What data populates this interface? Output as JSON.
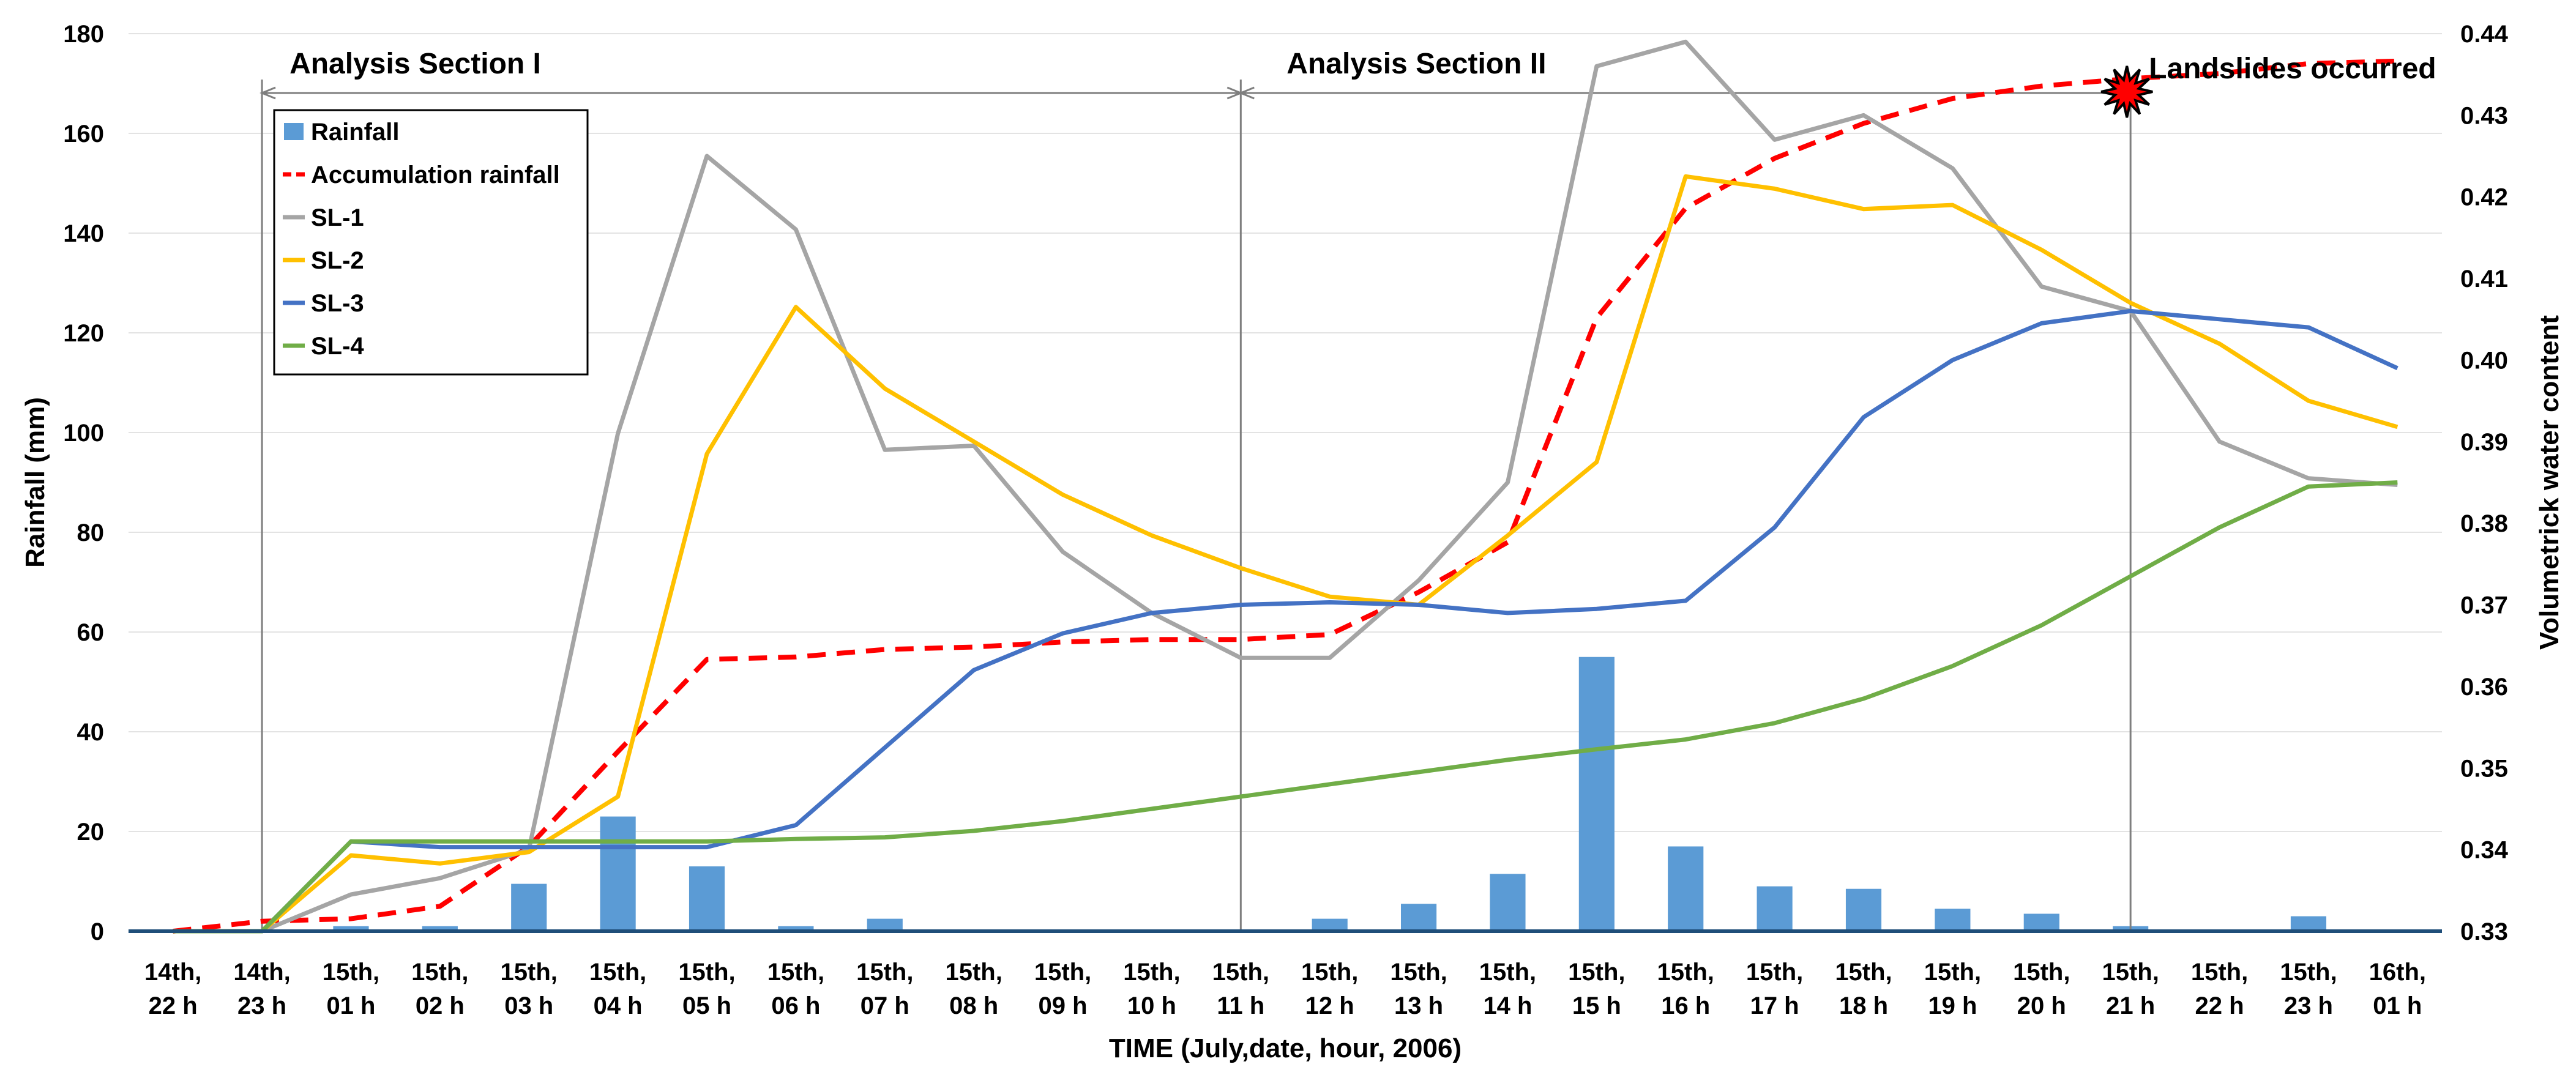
{
  "chart_data": {
    "type": "bar+line",
    "xlabel": "TIME (July,date, hour, 2006)",
    "ylabel_left": "Rainfall (mm)",
    "ylabel_right": "Volumetrick water content",
    "ylim_left": [
      0,
      180
    ],
    "ylim_right": [
      0.33,
      0.44
    ],
    "yticks_left": [
      "0",
      "20",
      "40",
      "60",
      "80",
      "100",
      "120",
      "140",
      "160",
      "180"
    ],
    "yticks_right": [
      "0.33",
      "0.34",
      "0.35",
      "0.36",
      "0.37",
      "0.38",
      "0.39",
      "0.40",
      "0.41",
      "0.42",
      "0.43",
      "0.44"
    ],
    "categories": [
      [
        "14th,",
        "22 h"
      ],
      [
        "14th,",
        "23 h"
      ],
      [
        "15th,",
        "01 h"
      ],
      [
        "15th,",
        "02 h"
      ],
      [
        "15th,",
        "03 h"
      ],
      [
        "15th,",
        "04 h"
      ],
      [
        "15th,",
        "05 h"
      ],
      [
        "15th,",
        "06 h"
      ],
      [
        "15th,",
        "07 h"
      ],
      [
        "15th,",
        "08 h"
      ],
      [
        "15th,",
        "09 h"
      ],
      [
        "15th,",
        "10 h"
      ],
      [
        "15th,",
        "11 h"
      ],
      [
        "15th,",
        "12 h"
      ],
      [
        "15th,",
        "13 h"
      ],
      [
        "15th,",
        "14 h"
      ],
      [
        "15th,",
        "15 h"
      ],
      [
        "15th,",
        "16 h"
      ],
      [
        "15th,",
        "17 h"
      ],
      [
        "15th,",
        "18 h"
      ],
      [
        "15th,",
        "19 h"
      ],
      [
        "15th,",
        "20 h"
      ],
      [
        "15th,",
        "21 h"
      ],
      [
        "15th,",
        "22 h"
      ],
      [
        "15th,",
        "23 h"
      ],
      [
        "16th,",
        "01 h"
      ]
    ],
    "series": [
      {
        "name": "Rainfall",
        "type": "bar",
        "axis": "left",
        "color": "#5B9BD5",
        "values": [
          0,
          0,
          1,
          1,
          9.5,
          23,
          13,
          1,
          2.5,
          0,
          0,
          0,
          0,
          2.5,
          5.5,
          11.5,
          55,
          17,
          9,
          8.5,
          4.5,
          3.5,
          1,
          0,
          3,
          0
        ]
      },
      {
        "name": "Accumulation rainfall",
        "type": "line",
        "dashed": true,
        "axis": "left",
        "color": "#FF0000",
        "values": [
          0,
          2,
          2.5,
          5,
          17,
          36,
          54.5,
          55,
          56.5,
          57,
          58,
          58.5,
          58.5,
          59.5,
          68,
          78,
          123,
          145,
          155,
          162,
          167,
          169.5,
          171,
          172,
          174,
          174.5
        ]
      },
      {
        "name": "SL-1",
        "type": "line",
        "axis": "right",
        "color": "#A5A5A5",
        "values": [
          0.33,
          0.33,
          0.3345,
          0.3365,
          0.34,
          0.391,
          0.425,
          0.416,
          0.389,
          0.3895,
          0.3765,
          0.369,
          0.3635,
          0.3635,
          0.373,
          0.385,
          0.436,
          0.439,
          0.427,
          0.43,
          0.4235,
          0.409,
          0.406,
          0.39,
          0.3855,
          0.3847
        ]
      },
      {
        "name": "SL-2",
        "type": "line",
        "axis": "right",
        "color": "#FFC000",
        "values": [
          0.33,
          0.33,
          0.3393,
          0.3383,
          0.3397,
          0.3465,
          0.3885,
          0.4065,
          0.3965,
          0.39,
          0.3835,
          0.3785,
          0.3745,
          0.371,
          0.37,
          0.3785,
          0.3875,
          0.4225,
          0.421,
          0.4185,
          0.419,
          0.4135,
          0.407,
          0.402,
          0.395,
          0.3918
        ]
      },
      {
        "name": "SL-3",
        "type": "line",
        "axis": "right",
        "color": "#4472C4",
        "values": [
          0.33,
          0.33,
          0.341,
          0.3403,
          0.3403,
          0.3403,
          0.3403,
          0.343,
          0.3525,
          0.362,
          0.3665,
          0.369,
          0.37,
          0.3703,
          0.37,
          0.369,
          0.3695,
          0.3705,
          0.3795,
          0.393,
          0.4,
          0.4045,
          0.406,
          0.405,
          0.404,
          0.399
        ]
      },
      {
        "name": "SL-4",
        "type": "line",
        "axis": "right",
        "color": "#70AD47",
        "values": [
          0.33,
          0.33,
          0.341,
          0.341,
          0.341,
          0.341,
          0.341,
          0.3413,
          0.3415,
          0.3423,
          0.3435,
          0.345,
          0.3465,
          0.348,
          0.3495,
          0.351,
          0.3523,
          0.3535,
          0.3555,
          0.3585,
          0.3625,
          0.3675,
          0.3735,
          0.3795,
          0.3845,
          0.385
        ]
      }
    ],
    "annotations": [
      {
        "text": "Analysis Section I",
        "from_category": 1,
        "to_category": 12
      },
      {
        "text": "Analysis Section II",
        "from_category": 12,
        "to_category": 22
      },
      {
        "text": "Landslides occurred",
        "at_category": 22,
        "marker": "explosion"
      }
    ],
    "legend": {
      "position": "top-left",
      "entries": [
        {
          "label": "Rainfall",
          "symbol": "bar",
          "color": "#5B9BD5"
        },
        {
          "label": "Accumulation rainfall",
          "symbol": "dashed-line",
          "color": "#FF0000"
        },
        {
          "label": "SL-1",
          "symbol": "line",
          "color": "#A5A5A5"
        },
        {
          "label": "SL-2",
          "symbol": "line",
          "color": "#FFC000"
        },
        {
          "label": "SL-3",
          "symbol": "line",
          "color": "#4472C4"
        },
        {
          "label": "SL-4",
          "symbol": "line",
          "color": "#70AD47"
        }
      ]
    },
    "grid": true
  }
}
